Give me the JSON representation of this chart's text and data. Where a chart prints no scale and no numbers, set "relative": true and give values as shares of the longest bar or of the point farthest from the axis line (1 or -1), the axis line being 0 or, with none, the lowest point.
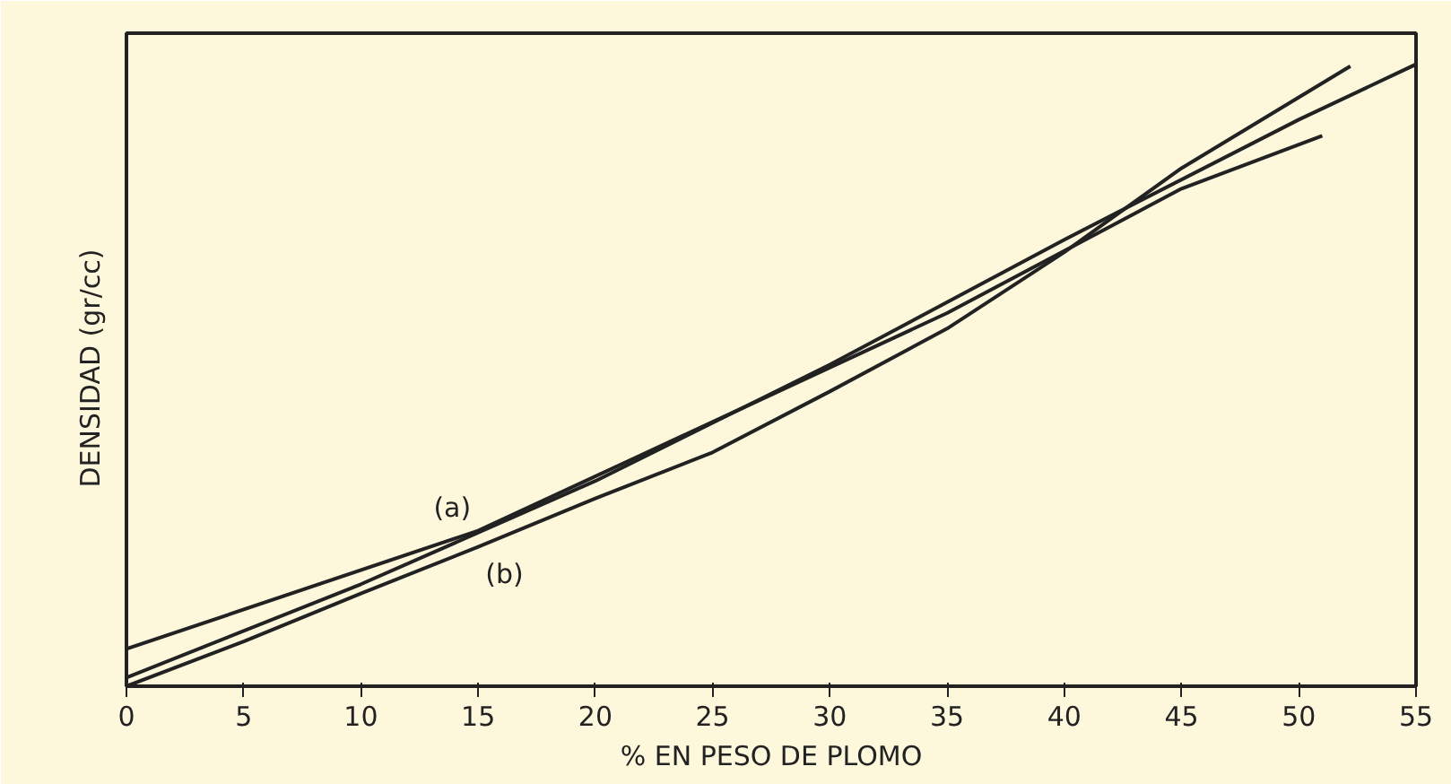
{
  "chart_data": {
    "type": "line",
    "relative": true,
    "xlabel": "% EN PESO DE PLOMO",
    "ylabel": "DENSIDAD   (gr/cc)",
    "xlim": [
      0,
      55
    ],
    "xticks": [
      0,
      5,
      10,
      15,
      20,
      25,
      30,
      35,
      40,
      45,
      50,
      55
    ],
    "grid": false,
    "series": [
      {
        "name": "(a)",
        "color": "#222222",
        "x": [
          0,
          15,
          25,
          35,
          45,
          51
        ],
        "values": [
          0.06,
          0.25,
          0.425,
          0.6,
          0.8,
          0.885
        ]
      },
      {
        "color": "#222222",
        "x": [
          0,
          10,
          20,
          30,
          40,
          50,
          55
        ],
        "values": [
          0.014,
          0.164,
          0.33,
          0.517,
          0.718,
          0.911,
          1.0
        ]
      },
      {
        "name": "(b)",
        "color": "#222222",
        "x": [
          0,
          5,
          10,
          15,
          20,
          25,
          30,
          35,
          40,
          45,
          52.2
        ],
        "values": [
          0,
          0.072,
          0.149,
          0.224,
          0.302,
          0.376,
          0.474,
          0.575,
          0.698,
          0.833,
          0.997
        ]
      }
    ]
  }
}
